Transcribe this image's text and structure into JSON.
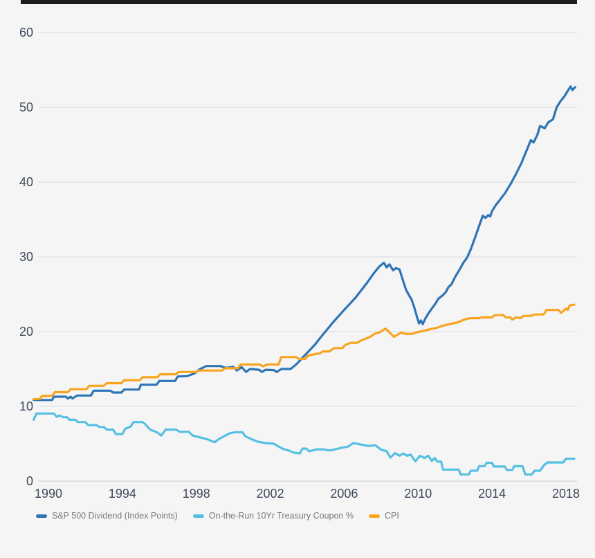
{
  "colors": {
    "background": "#f5f5f6",
    "gridline": "#d9dadc",
    "axis_line": "#c9cbce",
    "axis_label": "#3f4a5a",
    "legend_text": "#77787b",
    "top_rule": "#1c1c1c"
  },
  "chart_data": {
    "type": "line",
    "title": "",
    "xlabel": "",
    "ylabel": "",
    "grid": true,
    "legend_position": "bottom",
    "x_axis": {
      "ticks": [
        1990,
        1994,
        1998,
        2002,
        2006,
        2010,
        2014,
        2018
      ],
      "range": [
        1989.2,
        2018.5
      ]
    },
    "y_axis": {
      "ticks": [
        0,
        10,
        20,
        30,
        40,
        50,
        60
      ],
      "range": [
        0,
        60
      ]
    },
    "series": [
      {
        "id": "sp500-dividend",
        "name": "S&P 500 Dividend (Index Points)",
        "color": "#2F74B5",
        "points": [
          [
            1989.2,
            10.85
          ],
          [
            1990.2,
            10.85
          ],
          [
            1990.3,
            11.3
          ],
          [
            1990.95,
            11.3
          ],
          [
            1991.05,
            11.05
          ],
          [
            1991.2,
            11.3
          ],
          [
            1991.3,
            11.05
          ],
          [
            1991.55,
            11.45
          ],
          [
            1992.3,
            11.45
          ],
          [
            1992.45,
            12.1
          ],
          [
            1993.35,
            12.1
          ],
          [
            1993.5,
            11.85
          ],
          [
            1993.95,
            11.85
          ],
          [
            1994.1,
            12.25
          ],
          [
            1994.9,
            12.25
          ],
          [
            1995.0,
            12.9
          ],
          [
            1995.85,
            12.9
          ],
          [
            1996.0,
            13.4
          ],
          [
            1996.85,
            13.4
          ],
          [
            1997.0,
            14.0
          ],
          [
            1997.5,
            14.05
          ],
          [
            1997.9,
            14.4
          ],
          [
            1998.2,
            15.0
          ],
          [
            1998.55,
            15.4
          ],
          [
            1999.3,
            15.4
          ],
          [
            1999.6,
            15.15
          ],
          [
            2000.0,
            15.3
          ],
          [
            2000.2,
            14.8
          ],
          [
            2000.45,
            15.25
          ],
          [
            2000.7,
            14.6
          ],
          [
            2000.9,
            15.0
          ],
          [
            2001.4,
            14.9
          ],
          [
            2001.55,
            14.6
          ],
          [
            2001.75,
            14.9
          ],
          [
            2002.2,
            14.85
          ],
          [
            2002.35,
            14.6
          ],
          [
            2002.6,
            15.0
          ],
          [
            2003.1,
            15.0
          ],
          [
            2003.4,
            15.6
          ],
          [
            2003.9,
            16.9
          ],
          [
            2004.4,
            18.2
          ],
          [
            2004.75,
            19.3
          ],
          [
            2005.35,
            21.1
          ],
          [
            2006.0,
            22.9
          ],
          [
            2006.6,
            24.5
          ],
          [
            2007.2,
            26.4
          ],
          [
            2007.6,
            27.8
          ],
          [
            2007.9,
            28.7
          ],
          [
            2008.15,
            29.2
          ],
          [
            2008.3,
            28.6
          ],
          [
            2008.45,
            29.0
          ],
          [
            2008.65,
            28.2
          ],
          [
            2008.8,
            28.5
          ],
          [
            2009.0,
            28.3
          ],
          [
            2009.2,
            26.7
          ],
          [
            2009.35,
            25.6
          ],
          [
            2009.5,
            24.9
          ],
          [
            2009.65,
            24.3
          ],
          [
            2009.8,
            23.2
          ],
          [
            2009.95,
            21.9
          ],
          [
            2010.05,
            21.1
          ],
          [
            2010.15,
            21.5
          ],
          [
            2010.25,
            21.0
          ],
          [
            2010.4,
            21.8
          ],
          [
            2010.55,
            22.4
          ],
          [
            2010.75,
            23.1
          ],
          [
            2010.9,
            23.6
          ],
          [
            2011.1,
            24.4
          ],
          [
            2011.35,
            24.9
          ],
          [
            2011.5,
            25.3
          ],
          [
            2011.65,
            26.0
          ],
          [
            2011.8,
            26.3
          ],
          [
            2012.0,
            27.3
          ],
          [
            2012.2,
            28.1
          ],
          [
            2012.45,
            29.2
          ],
          [
            2012.65,
            29.9
          ],
          [
            2012.85,
            31.0
          ],
          [
            2013.1,
            32.7
          ],
          [
            2013.3,
            34.1
          ],
          [
            2013.5,
            35.5
          ],
          [
            2013.65,
            35.2
          ],
          [
            2013.8,
            35.6
          ],
          [
            2013.9,
            35.4
          ],
          [
            2014.0,
            36.1
          ],
          [
            2014.2,
            36.9
          ],
          [
            2014.45,
            37.7
          ],
          [
            2014.7,
            38.5
          ],
          [
            2015.0,
            39.7
          ],
          [
            2015.3,
            41.1
          ],
          [
            2015.6,
            42.6
          ],
          [
            2015.9,
            44.4
          ],
          [
            2016.1,
            45.6
          ],
          [
            2016.25,
            45.3
          ],
          [
            2016.45,
            46.3
          ],
          [
            2016.6,
            47.5
          ],
          [
            2016.85,
            47.2
          ],
          [
            2017.05,
            48.0
          ],
          [
            2017.3,
            48.4
          ],
          [
            2017.5,
            50.0
          ],
          [
            2017.7,
            50.8
          ],
          [
            2017.9,
            51.4
          ],
          [
            2018.05,
            52.0
          ],
          [
            2018.25,
            52.8
          ],
          [
            2018.35,
            52.3
          ],
          [
            2018.5,
            52.7
          ]
        ]
      },
      {
        "id": "treasury-10yr-coupon",
        "name": "On-the-Run 10Yr Treasury Coupon %",
        "color": "#56C0E2",
        "points": [
          [
            1989.2,
            8.2
          ],
          [
            1989.35,
            9.05
          ],
          [
            1990.3,
            9.05
          ],
          [
            1990.45,
            8.6
          ],
          [
            1990.6,
            8.8
          ],
          [
            1990.8,
            8.55
          ],
          [
            1991.0,
            8.55
          ],
          [
            1991.15,
            8.2
          ],
          [
            1991.45,
            8.2
          ],
          [
            1991.6,
            7.9
          ],
          [
            1992.0,
            7.9
          ],
          [
            1992.15,
            7.5
          ],
          [
            1992.6,
            7.5
          ],
          [
            1992.75,
            7.25
          ],
          [
            1993.0,
            7.25
          ],
          [
            1993.15,
            6.9
          ],
          [
            1993.5,
            6.9
          ],
          [
            1993.65,
            6.3
          ],
          [
            1994.0,
            6.3
          ],
          [
            1994.15,
            7.0
          ],
          [
            1994.45,
            7.3
          ],
          [
            1994.6,
            7.9
          ],
          [
            1995.1,
            7.9
          ],
          [
            1995.25,
            7.6
          ],
          [
            1995.5,
            6.9
          ],
          [
            1995.9,
            6.5
          ],
          [
            1996.1,
            6.1
          ],
          [
            1996.35,
            6.9
          ],
          [
            1996.9,
            6.9
          ],
          [
            1997.1,
            6.6
          ],
          [
            1997.6,
            6.6
          ],
          [
            1997.8,
            6.1
          ],
          [
            1998.3,
            5.8
          ],
          [
            1998.6,
            5.6
          ],
          [
            1999.0,
            5.2
          ],
          [
            1999.2,
            5.6
          ],
          [
            1999.5,
            6.0
          ],
          [
            1999.8,
            6.4
          ],
          [
            2000.1,
            6.55
          ],
          [
            2000.5,
            6.55
          ],
          [
            2000.65,
            6.0
          ],
          [
            2001.0,
            5.6
          ],
          [
            2001.3,
            5.3
          ],
          [
            2001.7,
            5.1
          ],
          [
            2002.2,
            5.0
          ],
          [
            2002.4,
            4.7
          ],
          [
            2002.7,
            4.3
          ],
          [
            2003.0,
            4.1
          ],
          [
            2003.3,
            3.8
          ],
          [
            2003.6,
            3.7
          ],
          [
            2003.75,
            4.35
          ],
          [
            2003.95,
            4.35
          ],
          [
            2004.1,
            4.0
          ],
          [
            2004.5,
            4.25
          ],
          [
            2004.9,
            4.25
          ],
          [
            2005.2,
            4.1
          ],
          [
            2005.6,
            4.3
          ],
          [
            2005.9,
            4.5
          ],
          [
            2006.2,
            4.6
          ],
          [
            2006.5,
            5.1
          ],
          [
            2006.9,
            4.9
          ],
          [
            2007.3,
            4.7
          ],
          [
            2007.7,
            4.8
          ],
          [
            2008.0,
            4.2
          ],
          [
            2008.3,
            4.0
          ],
          [
            2008.5,
            3.15
          ],
          [
            2008.75,
            3.75
          ],
          [
            2009.0,
            3.4
          ],
          [
            2009.2,
            3.7
          ],
          [
            2009.4,
            3.4
          ],
          [
            2009.6,
            3.55
          ],
          [
            2009.85,
            2.65
          ],
          [
            2010.1,
            3.4
          ],
          [
            2010.35,
            3.1
          ],
          [
            2010.55,
            3.4
          ],
          [
            2010.75,
            2.7
          ],
          [
            2010.9,
            3.1
          ],
          [
            2011.05,
            2.6
          ],
          [
            2011.25,
            2.6
          ],
          [
            2011.35,
            1.55
          ],
          [
            2012.2,
            1.55
          ],
          [
            2012.3,
            0.9
          ],
          [
            2012.75,
            0.9
          ],
          [
            2012.85,
            1.4
          ],
          [
            2013.2,
            1.4
          ],
          [
            2013.3,
            2.0
          ],
          [
            2013.6,
            2.0
          ],
          [
            2013.7,
            2.45
          ],
          [
            2014.0,
            2.45
          ],
          [
            2014.1,
            1.95
          ],
          [
            2014.7,
            1.95
          ],
          [
            2014.8,
            1.5
          ],
          [
            2015.1,
            1.5
          ],
          [
            2015.2,
            2.0
          ],
          [
            2015.65,
            2.0
          ],
          [
            2015.8,
            0.9
          ],
          [
            2016.15,
            0.9
          ],
          [
            2016.3,
            1.4
          ],
          [
            2016.6,
            1.4
          ],
          [
            2016.8,
            2.1
          ],
          [
            2017.0,
            2.5
          ],
          [
            2017.85,
            2.5
          ],
          [
            2018.0,
            3.0
          ],
          [
            2018.45,
            3.0
          ]
        ]
      },
      {
        "id": "cpi",
        "name": "CPI",
        "color": "#F8A41E",
        "points": [
          [
            1989.2,
            10.95
          ],
          [
            1989.55,
            11.0
          ],
          [
            1989.65,
            11.4
          ],
          [
            1990.2,
            11.4
          ],
          [
            1990.35,
            11.9
          ],
          [
            1991.05,
            11.9
          ],
          [
            1991.2,
            12.3
          ],
          [
            1992.05,
            12.3
          ],
          [
            1992.2,
            12.75
          ],
          [
            1993.0,
            12.75
          ],
          [
            1993.15,
            13.1
          ],
          [
            1993.95,
            13.1
          ],
          [
            1994.1,
            13.5
          ],
          [
            1994.95,
            13.5
          ],
          [
            1995.1,
            13.9
          ],
          [
            1995.9,
            13.9
          ],
          [
            1996.05,
            14.3
          ],
          [
            1996.9,
            14.3
          ],
          [
            1997.05,
            14.6
          ],
          [
            1998.0,
            14.6
          ],
          [
            1998.15,
            14.8
          ],
          [
            1999.4,
            14.8
          ],
          [
            1999.55,
            15.1
          ],
          [
            2000.25,
            15.1
          ],
          [
            2000.4,
            15.6
          ],
          [
            2001.45,
            15.6
          ],
          [
            2001.6,
            15.35
          ],
          [
            2001.85,
            15.6
          ],
          [
            2002.45,
            15.6
          ],
          [
            2002.6,
            16.6
          ],
          [
            2003.4,
            16.6
          ],
          [
            2003.55,
            16.35
          ],
          [
            2003.9,
            16.35
          ],
          [
            2004.05,
            16.8
          ],
          [
            2004.45,
            17.0
          ],
          [
            2004.7,
            17.1
          ],
          [
            2004.85,
            17.35
          ],
          [
            2005.2,
            17.35
          ],
          [
            2005.45,
            17.8
          ],
          [
            2005.9,
            17.8
          ],
          [
            2006.05,
            18.2
          ],
          [
            2006.35,
            18.5
          ],
          [
            2006.7,
            18.5
          ],
          [
            2006.9,
            18.8
          ],
          [
            2007.1,
            19.0
          ],
          [
            2007.4,
            19.3
          ],
          [
            2007.65,
            19.7
          ],
          [
            2007.9,
            19.9
          ],
          [
            2008.1,
            20.2
          ],
          [
            2008.25,
            20.4
          ],
          [
            2008.45,
            19.9
          ],
          [
            2008.7,
            19.3
          ],
          [
            2008.9,
            19.6
          ],
          [
            2009.1,
            19.9
          ],
          [
            2009.3,
            19.7
          ],
          [
            2009.7,
            19.7
          ],
          [
            2009.9,
            19.9
          ],
          [
            2010.3,
            20.1
          ],
          [
            2010.6,
            20.3
          ],
          [
            2011.0,
            20.5
          ],
          [
            2011.35,
            20.8
          ],
          [
            2011.7,
            21.0
          ],
          [
            2012.1,
            21.2
          ],
          [
            2012.5,
            21.6
          ],
          [
            2012.8,
            21.8
          ],
          [
            2013.3,
            21.8
          ],
          [
            2013.45,
            21.9
          ],
          [
            2014.0,
            21.9
          ],
          [
            2014.15,
            22.2
          ],
          [
            2014.6,
            22.2
          ],
          [
            2014.75,
            21.9
          ],
          [
            2015.0,
            21.9
          ],
          [
            2015.1,
            21.6
          ],
          [
            2015.3,
            21.9
          ],
          [
            2015.55,
            21.8
          ],
          [
            2015.7,
            22.1
          ],
          [
            2016.1,
            22.1
          ],
          [
            2016.3,
            22.3
          ],
          [
            2016.8,
            22.3
          ],
          [
            2016.95,
            22.9
          ],
          [
            2017.6,
            22.9
          ],
          [
            2017.75,
            22.5
          ],
          [
            2018.0,
            23.1
          ],
          [
            2018.1,
            22.9
          ],
          [
            2018.2,
            23.5
          ],
          [
            2018.45,
            23.6
          ]
        ]
      }
    ]
  }
}
